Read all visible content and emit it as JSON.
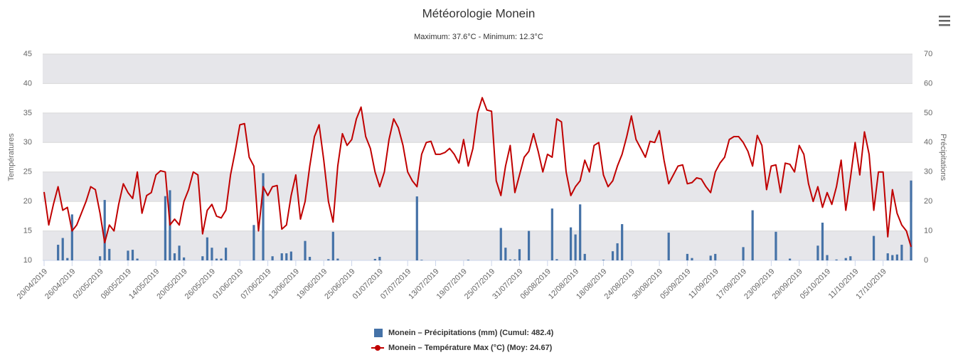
{
  "chart_data": {
    "type": "combo",
    "title": "Météorologie Monein",
    "subtitle": "Maximum: 37.6°C - Minimum: 12.3°C",
    "y_label": "Températures",
    "y2_label": "Précipitations",
    "ylim": [
      10,
      45
    ],
    "yticks": [
      10,
      15,
      20,
      25,
      30,
      35,
      40,
      45
    ],
    "y2lim": [
      0,
      70
    ],
    "y2ticks": [
      0,
      10,
      20,
      30,
      40,
      50,
      60,
      70
    ],
    "grid": true,
    "plot_bands": [
      [
        10,
        15
      ],
      [
        20,
        25
      ],
      [
        30,
        35
      ],
      [
        40,
        45
      ]
    ],
    "band_color": "#e6e6ea",
    "legend": "bottom",
    "categories": [
      "20/04/2019",
      null,
      null,
      null,
      null,
      null,
      "26/04/2019",
      null,
      null,
      null,
      null,
      null,
      "02/05/2019",
      null,
      null,
      null,
      null,
      null,
      "08/05/2019",
      null,
      null,
      null,
      null,
      null,
      "14/05/2019",
      null,
      null,
      null,
      null,
      null,
      "20/05/2019",
      null,
      null,
      null,
      null,
      null,
      "26/05/2019",
      null,
      null,
      null,
      null,
      null,
      "01/06/2019",
      null,
      null,
      null,
      null,
      null,
      "07/06/2019",
      null,
      null,
      null,
      null,
      null,
      "13/06/2019",
      null,
      null,
      null,
      null,
      null,
      "19/06/2019",
      null,
      null,
      null,
      null,
      null,
      "25/06/2019",
      null,
      null,
      null,
      null,
      null,
      "01/07/2019",
      null,
      null,
      null,
      null,
      null,
      "07/07/2019",
      null,
      null,
      null,
      null,
      null,
      "13/07/2019",
      null,
      null,
      null,
      null,
      null,
      "19/07/2019",
      null,
      null,
      null,
      null,
      null,
      "25/07/2019",
      null,
      null,
      null,
      null,
      null,
      "31/07/2019",
      null,
      null,
      null,
      null,
      null,
      "06/08/2019",
      null,
      null,
      null,
      null,
      null,
      "12/08/2019",
      null,
      null,
      null,
      null,
      null,
      "18/08/2019",
      null,
      null,
      null,
      null,
      null,
      "24/08/2019",
      null,
      null,
      null,
      null,
      null,
      "30/08/2019",
      null,
      null,
      null,
      null,
      null,
      "05/09/2019",
      null,
      null,
      null,
      null,
      null,
      "11/09/2019",
      null,
      null,
      null,
      null,
      null,
      "17/09/2019",
      null,
      null,
      null,
      null,
      null,
      "23/09/2019",
      null,
      null,
      null,
      null,
      null,
      "29/09/2019",
      null,
      null,
      null,
      null,
      null,
      "05/10/2019",
      null,
      null,
      null,
      null,
      null,
      "11/10/2019",
      null,
      null,
      null,
      null,
      null,
      "17/10/2019",
      null,
      null,
      null,
      null,
      null,
      null
    ],
    "series": [
      {
        "name": "Monein – Précipitations (mm) (Cumul: 482.4)",
        "type": "bar",
        "axis": "y2",
        "color": "#4572a7",
        "values": [
          0,
          0,
          0,
          5.3,
          7.6,
          0.8,
          15.6,
          0,
          0,
          0,
          0,
          0,
          1.4,
          20.5,
          3.9,
          0,
          0,
          0,
          3.3,
          3.6,
          0.6,
          0,
          0,
          0,
          0,
          0,
          21.8,
          23.8,
          2.4,
          5,
          1,
          0,
          0,
          0,
          1.4,
          7.8,
          4.3,
          0.6,
          0.6,
          4.3,
          0,
          0,
          0,
          0,
          0,
          12,
          0,
          29.6,
          0,
          1.4,
          0,
          2.4,
          2.4,
          3,
          0,
          0,
          6.6,
          1.2,
          0,
          0,
          0,
          0.4,
          9.7,
          0.6,
          0,
          0,
          0,
          0,
          0,
          0,
          0,
          0.5,
          1.2,
          0,
          0,
          0,
          0,
          0,
          0,
          0,
          21.7,
          0.2,
          0,
          0,
          0,
          0,
          0,
          0,
          0,
          0,
          0,
          0.2,
          0,
          0,
          0,
          0,
          0,
          0,
          11,
          4.3,
          0.3,
          0.3,
          3.8,
          0,
          10,
          0,
          0,
          0,
          0,
          17.6,
          0.4,
          0,
          0,
          11.2,
          8.8,
          19,
          2.2,
          0,
          0,
          0,
          0.2,
          0,
          3.1,
          5.8,
          12.3,
          0,
          0,
          0,
          0,
          0,
          0,
          0,
          0,
          0,
          9.4,
          0,
          0,
          0,
          2.2,
          0.8,
          0,
          0,
          0,
          1.6,
          2.2,
          0,
          0,
          0,
          0,
          0,
          4.5,
          0,
          17,
          0,
          0,
          0,
          0,
          9.7,
          0,
          0,
          0.6,
          0,
          0,
          0,
          0,
          0,
          5,
          12.8,
          1.8,
          0,
          0.3,
          0,
          0.8,
          1.4,
          0,
          0,
          0,
          0,
          8.3,
          0,
          0,
          2.4,
          1.8,
          2,
          5.3,
          0,
          27.1
        ]
      },
      {
        "name": "Monein – Température Max (°C) (Moy: 24.67)",
        "type": "line",
        "axis": "y",
        "color": "#c00000",
        "values": [
          21.6,
          16,
          19.5,
          22.5,
          18.5,
          19,
          15,
          16,
          18,
          20,
          22.5,
          22,
          18,
          13,
          16,
          15,
          19.5,
          23,
          21.5,
          20.5,
          25,
          18,
          21,
          21.5,
          24.5,
          25.2,
          25,
          16,
          17,
          16,
          20,
          22,
          25,
          24.5,
          14.5,
          18.5,
          19.5,
          17.5,
          17.2,
          18.5,
          24.5,
          28.5,
          33,
          33.2,
          27.5,
          26,
          15,
          22.5,
          21,
          22.5,
          22.7,
          15.3,
          16,
          21,
          24.5,
          17,
          20,
          26,
          31,
          33,
          27,
          20,
          16.5,
          26,
          31.5,
          29.5,
          30.5,
          34,
          36,
          31,
          29,
          25,
          22.5,
          25,
          30.5,
          34,
          32.5,
          29.5,
          25,
          23.5,
          22.5,
          28,
          30,
          30.2,
          28,
          28,
          28.3,
          29,
          28,
          26.5,
          30.5,
          26,
          29,
          35,
          37.6,
          35.5,
          35.3,
          23.5,
          21,
          26,
          29.5,
          21.5,
          24.5,
          27.5,
          28.5,
          31.5,
          28.5,
          25,
          28,
          27.5,
          34,
          33.5,
          25,
          21,
          22.5,
          23.5,
          27,
          25,
          29.5,
          30,
          24.5,
          22.5,
          23.5,
          26,
          28,
          31,
          34.5,
          30.5,
          29,
          27.5,
          30.2,
          30,
          32,
          27,
          23,
          24.5,
          26,
          26.2,
          23,
          23.2,
          24,
          23.8,
          22.5,
          21.5,
          25,
          26.5,
          27.5,
          30.5,
          31,
          31,
          30,
          28.5,
          26,
          31.2,
          29.5,
          22,
          26,
          26.2,
          21.5,
          26.5,
          26.3,
          25,
          29.5,
          28,
          23,
          20,
          22.5,
          19,
          21.5,
          19.5,
          22.5,
          27,
          18.5,
          24,
          30,
          24.5,
          31.8,
          28,
          18.5,
          25,
          25,
          14,
          22,
          18,
          16,
          15,
          12.3
        ]
      }
    ]
  }
}
